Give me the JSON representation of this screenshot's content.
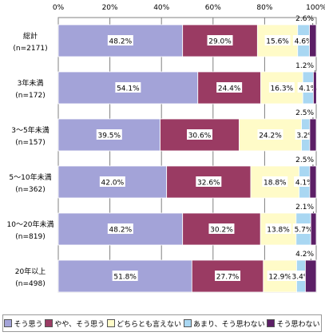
{
  "chart_data": {
    "type": "bar",
    "orientation": "horizontal",
    "stacked": true,
    "xlim": [
      0,
      100
    ],
    "x_ticks": [
      "0%",
      "20%",
      "40%",
      "60%",
      "80%",
      "100%"
    ],
    "grid": true,
    "categories": [
      {
        "name": "総計",
        "n": "(n=2171)"
      },
      {
        "name": "3年未満",
        "n": "(n=172)"
      },
      {
        "name": "3～5年未満",
        "n": "(n=157)"
      },
      {
        "name": "5～10年未満",
        "n": "(n=362)"
      },
      {
        "name": "10～20年未満",
        "n": "(n=819)"
      },
      {
        "name": "20年以上",
        "n": "(n=498)"
      }
    ],
    "series": [
      {
        "name": "そう思う",
        "color": "#a3a3d8",
        "values": [
          48.2,
          54.1,
          39.5,
          42.0,
          48.2,
          51.8
        ],
        "labels": [
          "48.2%",
          "54.1%",
          "39.5%",
          "42.0%",
          "48.2%",
          "51.8%"
        ]
      },
      {
        "name": "やや、そう思う",
        "color": "#9a3b63",
        "values": [
          29.0,
          24.4,
          30.6,
          32.6,
          30.2,
          27.7
        ],
        "labels": [
          "29.0%",
          "24.4%",
          "30.6%",
          "32.6%",
          "30.2%",
          "27.7%"
        ]
      },
      {
        "name": "どちらとも言えない",
        "color": "#fffbc8",
        "values": [
          15.6,
          16.3,
          24.2,
          18.8,
          13.8,
          12.9
        ],
        "labels": [
          "15.6%",
          "16.3%",
          "24.2%",
          "18.8%",
          "13.8%",
          "12.9%"
        ]
      },
      {
        "name": "あまり、そう思わない",
        "color": "#a9d7f2",
        "values": [
          4.6,
          4.1,
          3.2,
          4.1,
          5.7,
          3.4
        ],
        "labels": [
          "4.6%",
          "4.1%",
          "3.2%",
          "4.1%",
          "5.7%",
          "3.4%"
        ]
      },
      {
        "name": "そう思わない",
        "color": "#5c1f66",
        "values": [
          2.6,
          1.2,
          2.5,
          2.5,
          2.1,
          4.2
        ],
        "labels": [
          "2.6%",
          "1.2%",
          "2.5%",
          "2.5%",
          "2.1%",
          "4.2%"
        ]
      }
    ],
    "legend_position": "bottom"
  }
}
